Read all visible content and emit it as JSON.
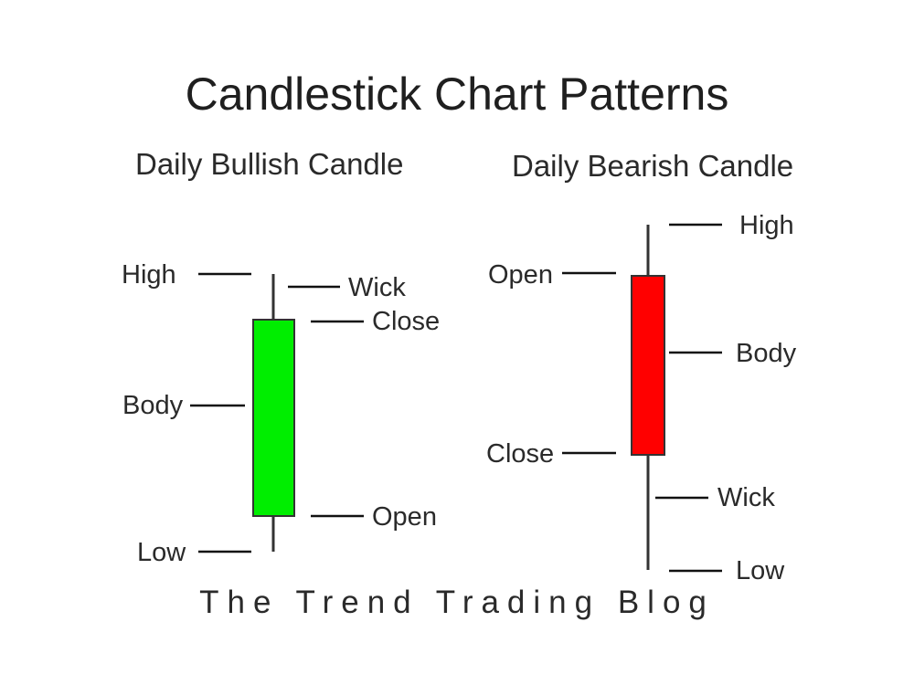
{
  "title": "Candlestick Chart Patterns",
  "bullish": {
    "heading": "Daily Bullish Candle",
    "body_color": "#00ee00",
    "labels": {
      "high": "High",
      "wick": "Wick",
      "close": "Close",
      "body": "Body",
      "open": "Open",
      "low": "Low"
    }
  },
  "bearish": {
    "heading": "Daily Bearish Candle",
    "body_color": "#ff0000",
    "labels": {
      "high": "High",
      "open": "Open",
      "body": "Body",
      "close": "Close",
      "wick": "Wick",
      "low": "Low"
    }
  },
  "footer": "The Trend Trading Blog",
  "colors": {
    "text": "#222222",
    "line": "#111111"
  }
}
